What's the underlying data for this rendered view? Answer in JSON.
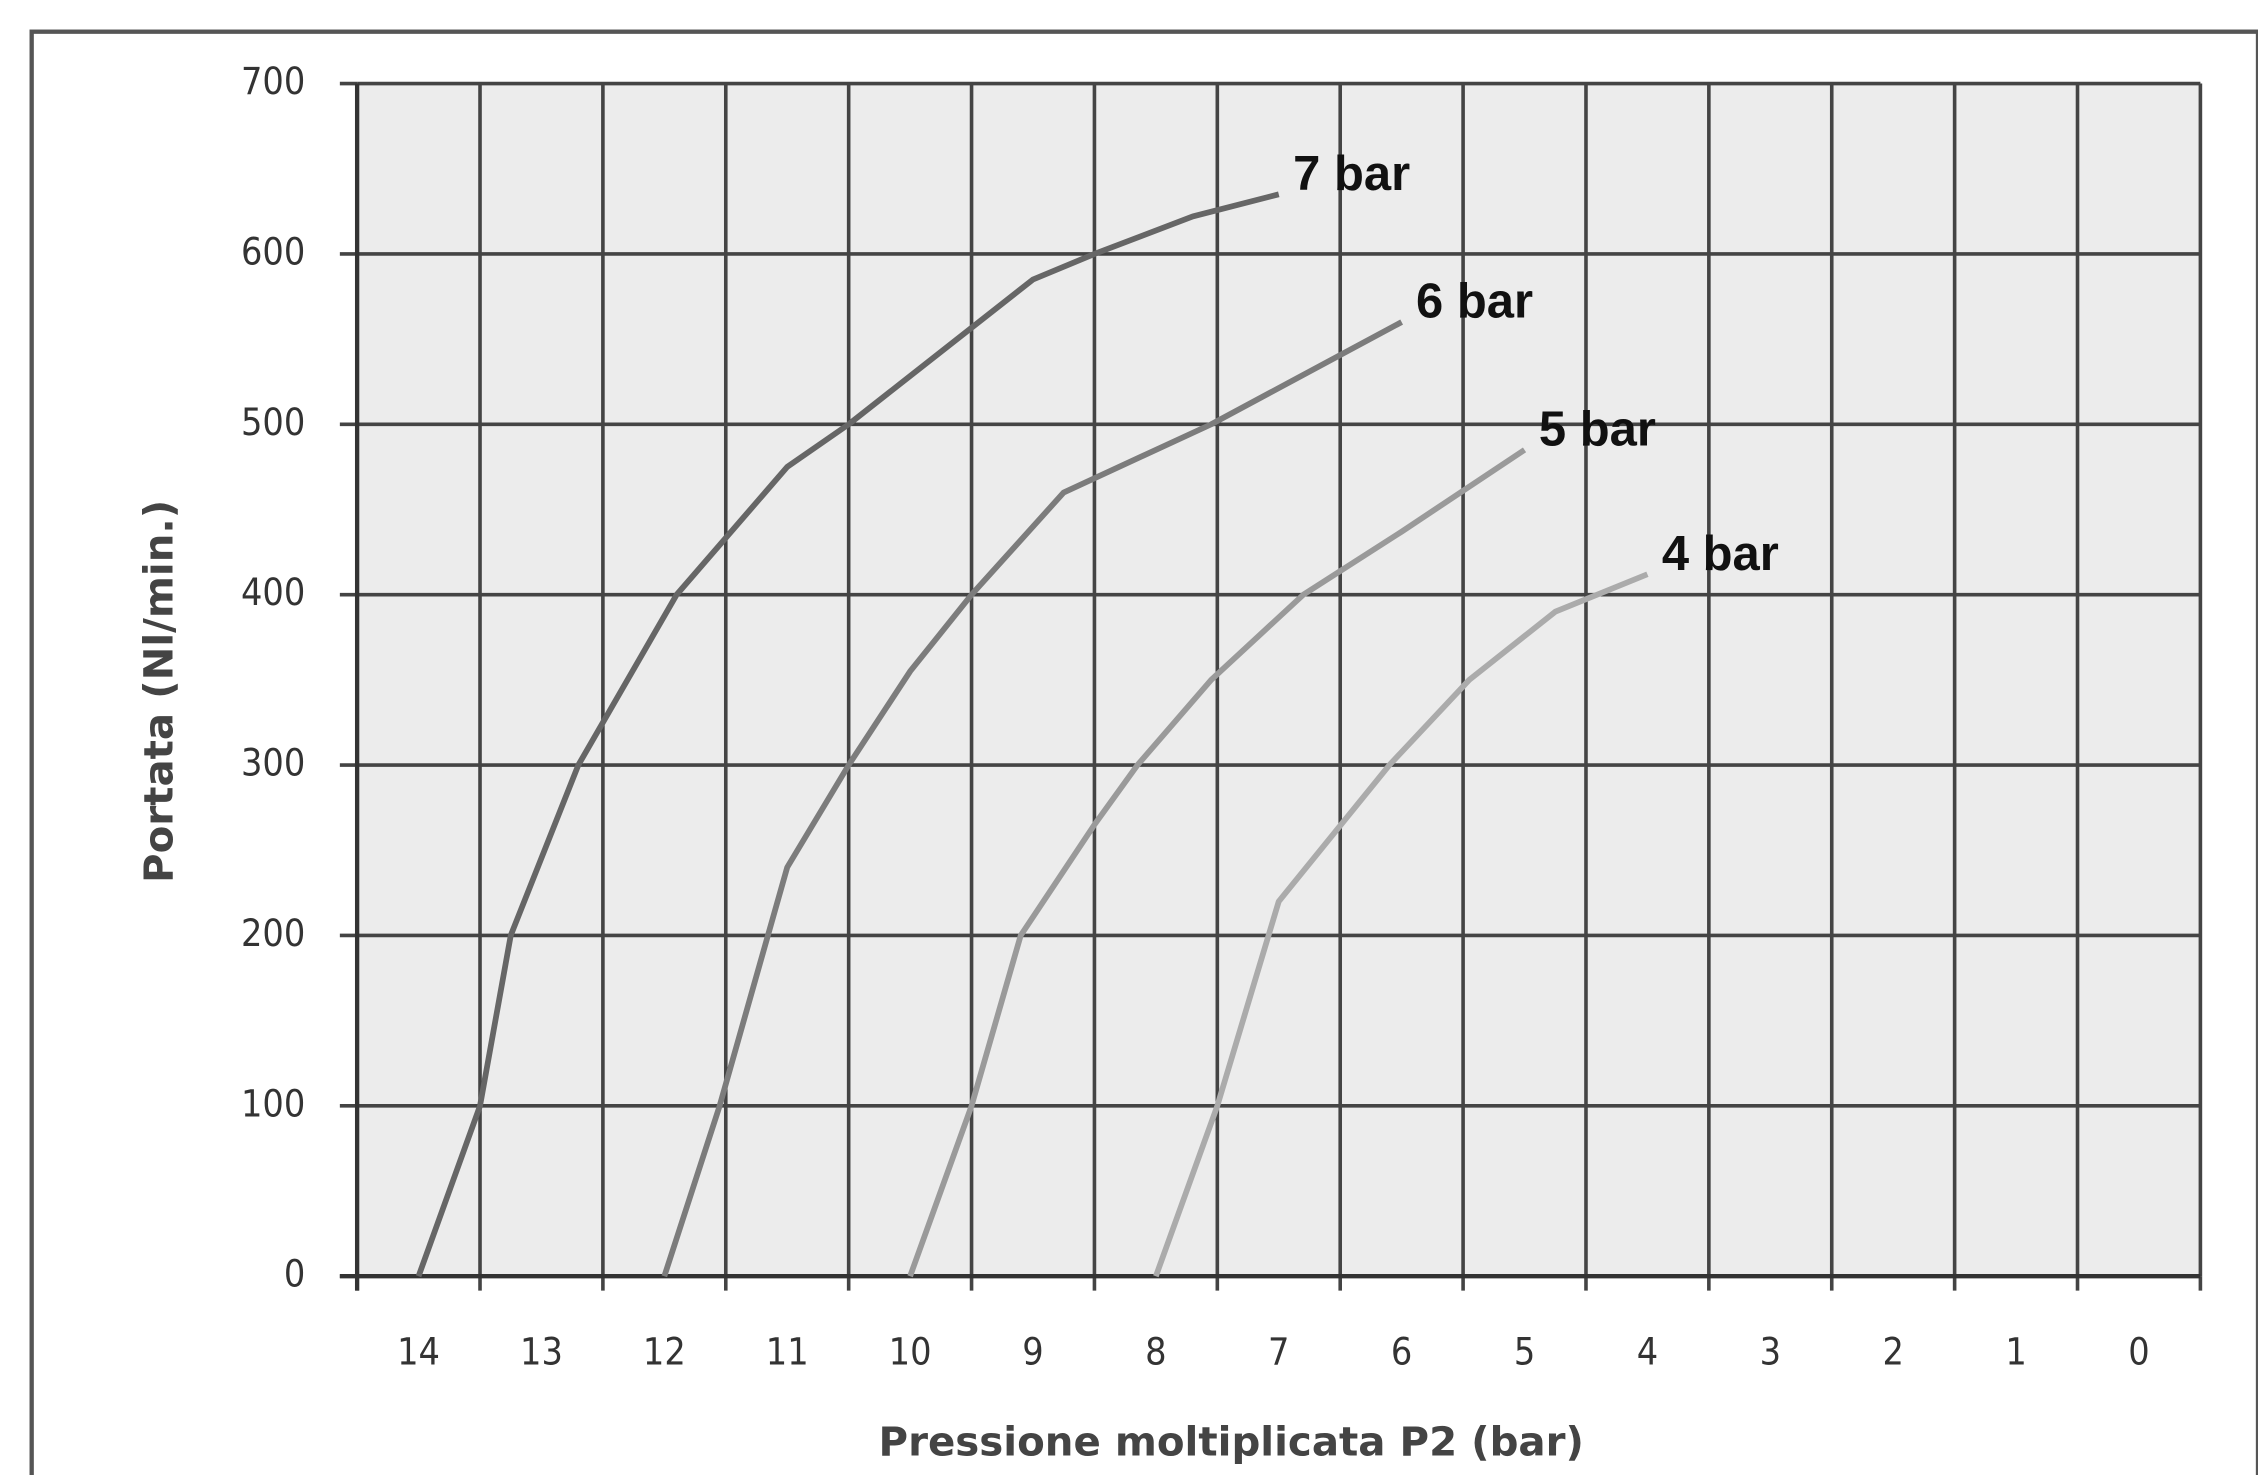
{
  "chart_data": {
    "type": "line",
    "x_label": "Pressione moltiplicata P2 (bar)",
    "y_label": "Portata (Nl/min.)",
    "xlim": [
      14.5,
      -0.5
    ],
    "xticks": [
      14,
      13,
      12,
      11,
      10,
      9,
      8,
      7,
      6,
      5,
      4,
      3,
      2,
      1,
      0
    ],
    "ylim": [
      0,
      700
    ],
    "yticks": [
      0,
      100,
      200,
      300,
      400,
      500,
      600,
      700
    ],
    "grid": true,
    "series": [
      {
        "name": "7 bar",
        "color": "#666666",
        "x": [
          14,
          13.5,
          13.25,
          12.7,
          11.9,
          11,
          10.5,
          9,
          8.5,
          7.7,
          7
        ],
        "values": [
          0,
          100,
          200,
          300,
          400,
          475,
          500,
          585,
          600,
          622,
          635
        ]
      },
      {
        "name": "6 bar",
        "color": "#7c7c7c",
        "x": [
          12,
          11.55,
          11,
          10.5,
          10,
          9.5,
          8.75,
          7.55,
          6
        ],
        "values": [
          0,
          100,
          240,
          300,
          355,
          400,
          460,
          500,
          560
        ]
      },
      {
        "name": "5 bar",
        "color": "#9a9a9a",
        "x": [
          10,
          9.5,
          9.1,
          8.5,
          8.15,
          7.55,
          6.8,
          6,
          5
        ],
        "values": [
          0,
          100,
          200,
          265,
          300,
          350,
          400,
          437,
          485
        ]
      },
      {
        "name": "4 bar",
        "color": "#ababab",
        "x": [
          8,
          7.5,
          7,
          6.1,
          5.45,
          4.75,
          4
        ],
        "values": [
          0,
          100,
          220,
          300,
          350,
          390,
          412
        ]
      }
    ]
  }
}
